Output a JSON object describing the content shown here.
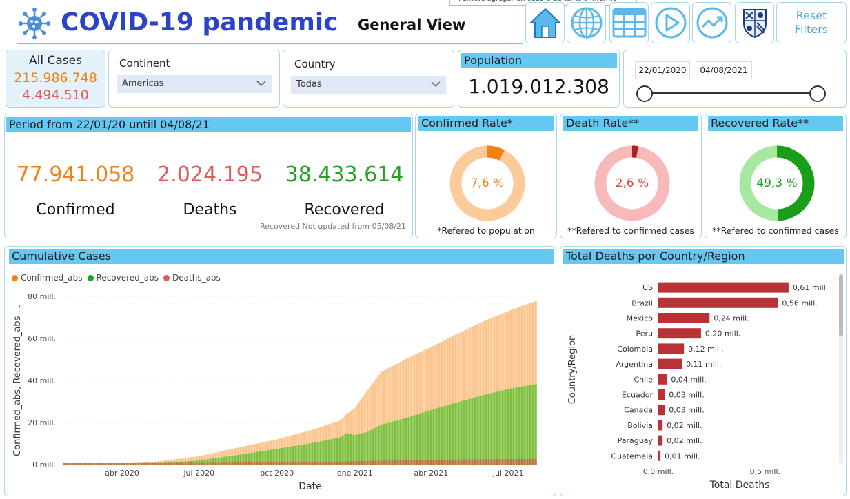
{
  "header": {
    "title": "COVID-19 pandemic",
    "subtitle": "General View",
    "tooltip": "Permite agregar un cuadro de texto a informe",
    "reset_label_line1": "Reset",
    "reset_label_line2": "Filters",
    "nav_icons": [
      "home-icon",
      "globe-icon",
      "table-icon",
      "play-icon",
      "trend-icon",
      "university-shield-icon"
    ]
  },
  "all_cases": {
    "label": "All Cases",
    "confirmed": "215.986.748",
    "deaths": "4.494.510"
  },
  "filters": {
    "continent_label": "Continent",
    "continent_value": "Americas",
    "country_label": "Country",
    "country_value": "Todas"
  },
  "population": {
    "label": "Population",
    "value": "1.019.012.308"
  },
  "date_range": {
    "start": "22/01/2020",
    "end": "04/08/2021"
  },
  "period": {
    "title": "Period from 22/01/20 untill 04/08/21",
    "confirmed_value": "77.941.058",
    "confirmed_label": "Confirmed",
    "deaths_value": "2.024.195",
    "deaths_label": "Deaths",
    "recovered_value": "38.433.614",
    "recovered_label": "Recovered",
    "note": "Recovered Not updated from 05/08/21"
  },
  "rates": [
    {
      "title": "Confirmed Rate*",
      "value": "7,6 %",
      "pct": 7.6,
      "note": "*Refered to population",
      "color": "#f47f12",
      "track": "#fbcb9a",
      "text_color": "#f47f12"
    },
    {
      "title": "Death Rate**",
      "value": "2,6 %",
      "pct": 2.6,
      "note": "**Refered to confirmed cases",
      "color": "#b71c1c",
      "track": "#f7b9b9",
      "text_color": "#d94848"
    },
    {
      "title": "Recovered Rate**",
      "value": "49,3 %",
      "pct": 49.3,
      "note": "**Refered to confirmed cases",
      "color": "#1a9e1a",
      "track": "#a7e8a0",
      "text_color": "#1a9e1a"
    }
  ],
  "colors": {
    "confirmed": "#f47f12",
    "deaths": "#e05a5a",
    "recovered": "#22a222",
    "band": "#65c8f1",
    "death_bar": "#b83236"
  },
  "cumulative": {
    "title": "Cumulative Cases",
    "legend": [
      "Confirmed_abs",
      "Recovered_abs",
      "Deaths_abs"
    ],
    "ylabel": "Confirmed_abs, Recovered_abs ...",
    "xlabel": "Date",
    "yticks": [
      "0 mill.",
      "20 mill.",
      "40 mill.",
      "60 mill.",
      "80 mill."
    ],
    "xticks": [
      "abr 2020",
      "jul 2020",
      "oct 2020",
      "ene 2021",
      "abr 2021",
      "jul 2021"
    ]
  },
  "chart_data": [
    {
      "type": "area",
      "title": "Cumulative Cases",
      "xlabel": "Date",
      "ylabel": "Confirmed_abs, Recovered_abs ...",
      "ylim": [
        0,
        80
      ],
      "y_unit": "mill.",
      "x": [
        "2020-01-22",
        "2020-04-01",
        "2020-05-15",
        "2020-07-01",
        "2020-08-15",
        "2020-10-01",
        "2020-11-15",
        "2020-12-15",
        "2020-12-22",
        "2021-01-01",
        "2021-01-15",
        "2021-02-01",
        "2021-03-01",
        "2021-04-01",
        "2021-05-01",
        "2021-06-01",
        "2021-07-01",
        "2021-08-04"
      ],
      "series": [
        {
          "name": "Confirmed_abs",
          "values": [
            0,
            0.2,
            1.5,
            4,
            8,
            12,
            17,
            21,
            24,
            27,
            35,
            44,
            50,
            56,
            62,
            68,
            73,
            78
          ]
        },
        {
          "name": "Recovered_abs",
          "values": [
            0,
            0.1,
            0.6,
            2,
            4.5,
            7.5,
            10.5,
            13,
            15,
            14,
            15.5,
            19,
            22,
            26,
            29.5,
            33,
            36,
            38.4
          ]
        },
        {
          "name": "Deaths_abs",
          "values": [
            0,
            0,
            0.05,
            0.15,
            0.3,
            0.45,
            0.6,
            0.75,
            0.8,
            0.85,
            1.0,
            1.15,
            1.35,
            1.5,
            1.7,
            1.85,
            1.95,
            2.0
          ]
        }
      ]
    },
    {
      "type": "bar",
      "title": "Total Deaths por Country/Region",
      "xlabel": "Total Deaths",
      "ylabel": "Country/Region",
      "categories": [
        "US",
        "Brazil",
        "Mexico",
        "Peru",
        "Colombia",
        "Argentina",
        "Chile",
        "Ecuador",
        "Canada",
        "Bolivia",
        "Paraguay",
        "Guatemala"
      ],
      "values": [
        0.61,
        0.56,
        0.24,
        0.2,
        0.12,
        0.11,
        0.04,
        0.03,
        0.03,
        0.02,
        0.02,
        0.01
      ],
      "value_labels": [
        "0,61 mill.",
        "0,56 mill.",
        "0,24 mill.",
        "0,20 mill.",
        "0,12 mill.",
        "0,11 mill.",
        "0,04 mill.",
        "0,03 mill.",
        "0,03 mill.",
        "0,02 mill.",
        "0,02 mill.",
        "0,01 mill."
      ],
      "xticks": [
        "0,0 mill.",
        "0,5 mill."
      ],
      "xlim": [
        0,
        0.62
      ]
    }
  ]
}
